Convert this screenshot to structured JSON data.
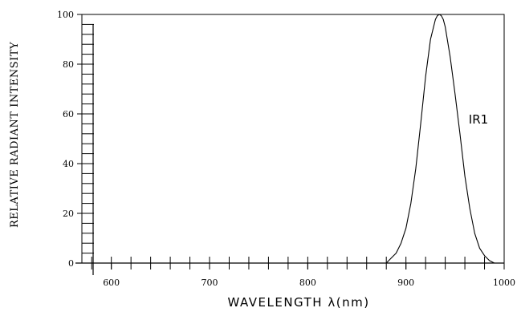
{
  "chart_data": {
    "type": "line",
    "title": "",
    "xlabel": "WAVELENGTH λ(nm)",
    "ylabel": "RELATIVE RADIANT INTENSITY",
    "xlim": [
      570,
      1000
    ],
    "ylim": [
      0,
      100
    ],
    "x_ticks": [
      600,
      700,
      800,
      900,
      1000
    ],
    "y_ticks": [
      0,
      20,
      40,
      60,
      80,
      100
    ],
    "x_minor_step": 20,
    "y_minor_step": 4,
    "grid": false,
    "series": [
      {
        "name": "IR1",
        "x": [
          880,
          885,
          890,
          895,
          900,
          905,
          910,
          915,
          920,
          925,
          930,
          932,
          934,
          936,
          938,
          940,
          945,
          950,
          955,
          960,
          965,
          970,
          975,
          980,
          985,
          990
        ],
        "y": [
          0,
          2,
          4,
          8,
          14,
          24,
          38,
          56,
          75,
          90,
          98,
          99.5,
          100,
          99.5,
          98,
          95,
          83,
          68,
          52,
          35,
          22,
          12,
          6,
          3,
          1,
          0
        ]
      }
    ]
  }
}
